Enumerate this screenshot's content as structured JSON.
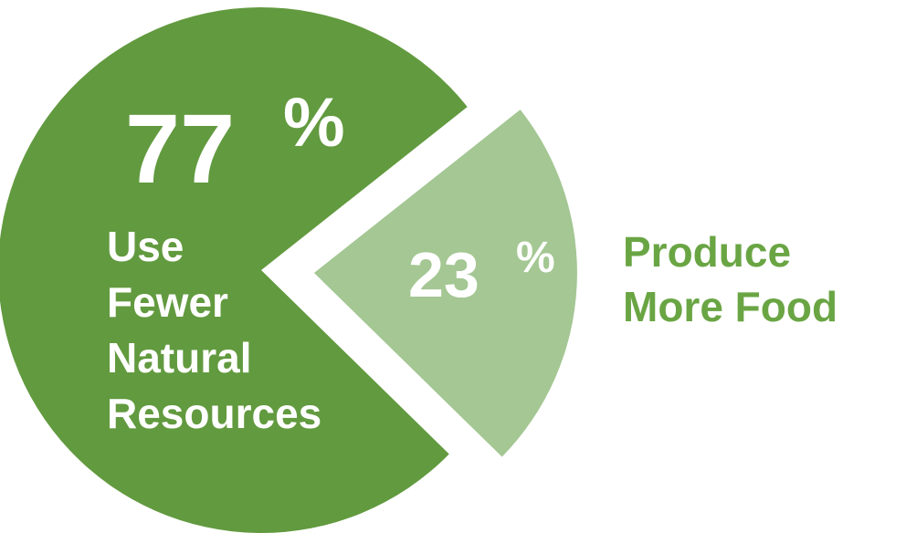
{
  "chart_data": {
    "type": "pie",
    "slices": [
      {
        "value": 77,
        "value_number": "77",
        "value_suffix": "%",
        "label_lines": [
          "Use",
          "Fewer",
          "Natural",
          "Resources"
        ],
        "color": "#629a3f"
      },
      {
        "value": 23,
        "value_number": "23",
        "value_suffix": "%",
        "label_lines": [
          "Produce",
          "More Food"
        ],
        "color": "#a4c793",
        "label_color": "#6aa544",
        "exploded": true
      }
    ],
    "title": "",
    "legend": "none"
  }
}
